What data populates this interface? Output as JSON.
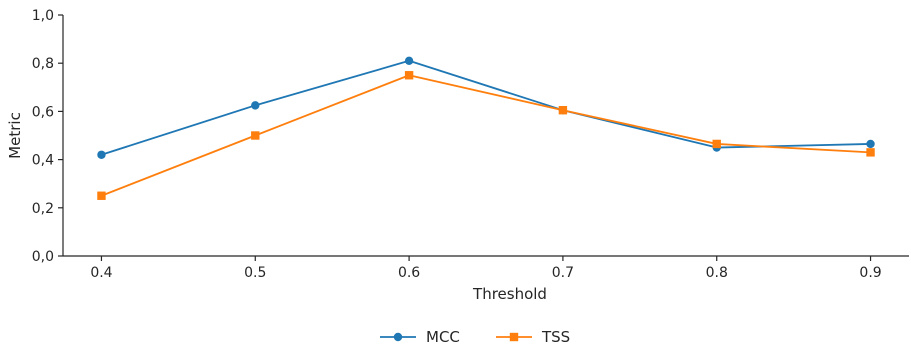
{
  "chart_data": {
    "type": "line",
    "title": "",
    "xlabel": "Threshold",
    "ylabel": "Metric",
    "x": [
      0.4,
      0.5,
      0.6,
      0.7,
      0.8,
      0.9
    ],
    "x_tick_labels": [
      "0.4",
      "0.5",
      "0.6",
      "0.7",
      "0.8",
      "0.9"
    ],
    "xlim": [
      0.375,
      0.925
    ],
    "ylim": [
      0.0,
      1.0
    ],
    "y_ticks": [
      0.0,
      0.2,
      0.4,
      0.6,
      0.8,
      1.0
    ],
    "y_tick_labels": [
      "0,0",
      "0,2",
      "0,4",
      "0,6",
      "0,8",
      "1,0"
    ],
    "grid": false,
    "legend": "bottom-center",
    "series": [
      {
        "name": "MCC",
        "marker": "circle",
        "color": "#1f77b4",
        "values": [
          0.42,
          0.625,
          0.81,
          0.605,
          0.45,
          0.465
        ]
      },
      {
        "name": "TSS",
        "marker": "square",
        "color": "#ff7f0e",
        "values": [
          0.25,
          0.5,
          0.75,
          0.605,
          0.465,
          0.43
        ]
      }
    ]
  }
}
